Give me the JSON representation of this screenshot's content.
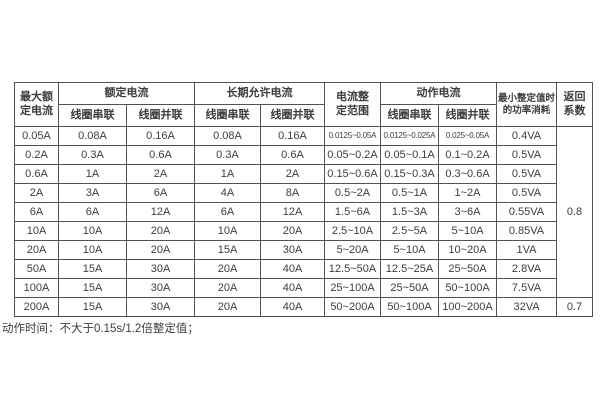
{
  "page": {
    "note": "动作时间：不大于0.15s/1.2倍整定值；"
  },
  "table": {
    "header": {
      "max_rated": "最大额\n定电流",
      "rated_group": "额定电流",
      "longterm_group": "长期允许电流",
      "setting_range": "电流整\n定范围",
      "action_group": "动作电流",
      "min_power": "最小整定值时\n的功率消耗",
      "return_coeff": "返回\n系数",
      "sub_series": "线圈串联",
      "sub_parallel": "线圈并联"
    },
    "rows": [
      [
        "0.05A",
        "0.08A",
        "0.16A",
        "0.08A",
        "0.16A",
        "0.0125~0.05A",
        "0.0125~0.025A",
        "0.025~0.05A",
        "0.4VA"
      ],
      [
        "0.2A",
        "0.3A",
        "0.6A",
        "0.3A",
        "0.6A",
        "0.05~0.2A",
        "0.05~0.1A",
        "0.1~0.2A",
        "0.5VA"
      ],
      [
        "0.6A",
        "1A",
        "2A",
        "1A",
        "2A",
        "0.15~0.6A",
        "0.15~0.3A",
        "0.3~0.6A",
        "0.5VA"
      ],
      [
        "2A",
        "3A",
        "6A",
        "4A",
        "8A",
        "0.5~2A",
        "0.5~1A",
        "1~2A",
        "0.5VA"
      ],
      [
        "6A",
        "6A",
        "12A",
        "6A",
        "12A",
        "1.5~6A",
        "1.5~3A",
        "3~6A",
        "0.55VA"
      ],
      [
        "10A",
        "10A",
        "20A",
        "10A",
        "20A",
        "2.5~10A",
        "2.5~5A",
        "5~10A",
        "0.85VA"
      ],
      [
        "20A",
        "10A",
        "20A",
        "15A",
        "30A",
        "5~20A",
        "5~10A",
        "10~20A",
        "1VA"
      ],
      [
        "50A",
        "15A",
        "30A",
        "20A",
        "40A",
        "12.5~50A",
        "12.5~25A",
        "25~50A",
        "2.8VA"
      ],
      [
        "100A",
        "15A",
        "30A",
        "20A",
        "40A",
        "25~100A",
        "25~50A",
        "50~100A",
        "7.5VA"
      ],
      [
        "200A",
        "15A",
        "30A",
        "20A",
        "40A",
        "50~200A",
        "50~100A",
        "100~200A",
        "32VA"
      ]
    ],
    "return_coeff_rows_1_9": "0.8",
    "return_coeff_row_10": "0.7"
  },
  "chart_data": {
    "type": "table",
    "title": "",
    "columns": [
      "最大额定电流",
      "额定电流-线圈串联",
      "额定电流-线圈并联",
      "长期允许电流-线圈串联",
      "长期允许电流-线圈并联",
      "电流整定范围",
      "动作电流-线圈串联",
      "动作电流-线圈并联",
      "最小整定值时的功率消耗",
      "返回系数"
    ],
    "rows": [
      [
        "0.05A",
        "0.08A",
        "0.16A",
        "0.08A",
        "0.16A",
        "0.0125~0.05A",
        "0.0125~0.025A",
        "0.025~0.05A",
        "0.4VA",
        "0.8"
      ],
      [
        "0.2A",
        "0.3A",
        "0.6A",
        "0.3A",
        "0.6A",
        "0.05~0.2A",
        "0.05~0.1A",
        "0.1~0.2A",
        "0.5VA",
        "0.8"
      ],
      [
        "0.6A",
        "1A",
        "2A",
        "1A",
        "2A",
        "0.15~0.6A",
        "0.15~0.3A",
        "0.3~0.6A",
        "0.5VA",
        "0.8"
      ],
      [
        "2A",
        "3A",
        "6A",
        "4A",
        "8A",
        "0.5~2A",
        "0.5~1A",
        "1~2A",
        "0.5VA",
        "0.8"
      ],
      [
        "6A",
        "6A",
        "12A",
        "6A",
        "12A",
        "1.5~6A",
        "1.5~3A",
        "3~6A",
        "0.55VA",
        "0.8"
      ],
      [
        "10A",
        "10A",
        "20A",
        "10A",
        "20A",
        "2.5~10A",
        "2.5~5A",
        "5~10A",
        "0.85VA",
        "0.8"
      ],
      [
        "20A",
        "10A",
        "20A",
        "15A",
        "30A",
        "5~20A",
        "5~10A",
        "10~20A",
        "1VA",
        "0.8"
      ],
      [
        "50A",
        "15A",
        "30A",
        "20A",
        "40A",
        "12.5~50A",
        "12.5~25A",
        "25~50A",
        "2.8VA",
        "0.8"
      ],
      [
        "100A",
        "15A",
        "30A",
        "20A",
        "40A",
        "25~100A",
        "25~50A",
        "50~100A",
        "7.5VA",
        "0.8"
      ],
      [
        "200A",
        "15A",
        "30A",
        "20A",
        "40A",
        "50~200A",
        "50~100A",
        "100~200A",
        "32VA",
        "0.7"
      ]
    ],
    "note": "动作时间：不大于0.15s/1.2倍整定值；"
  }
}
